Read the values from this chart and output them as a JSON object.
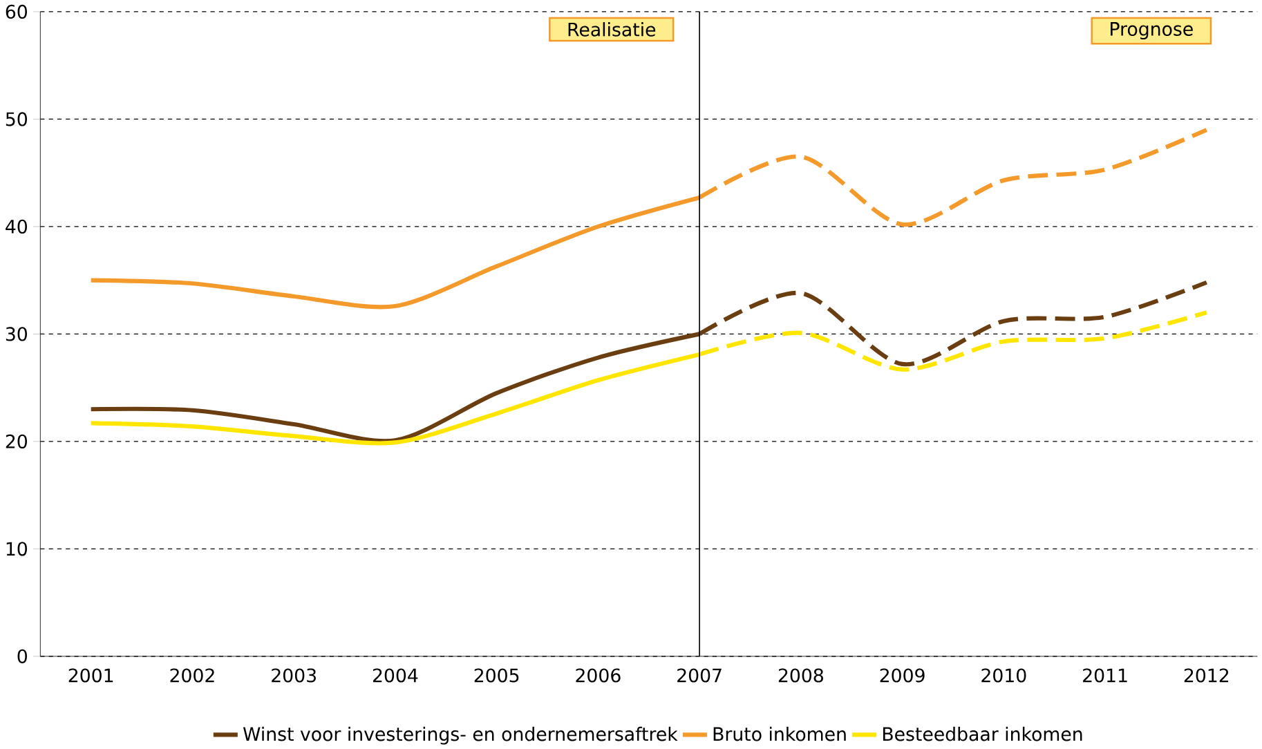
{
  "chart_data": {
    "type": "line",
    "categories": [
      "2001",
      "2002",
      "2003",
      "2004",
      "2005",
      "2006",
      "2007",
      "2008",
      "2009",
      "2010",
      "2011",
      "2012"
    ],
    "series": [
      {
        "name": "Winst voor investerings- en ondernemersaftrek",
        "color": "#6b3e12",
        "line_style": "solid",
        "values": [
          23,
          22.9,
          21.6,
          20.1,
          24.5,
          27.8,
          30,
          null,
          null,
          null,
          null,
          null
        ]
      },
      {
        "name": "Bruto inkomen",
        "color": "#f39a2b",
        "line_style": "solid",
        "values": [
          35,
          34.7,
          33.5,
          32.6,
          36.3,
          40,
          42.7,
          null,
          null,
          null,
          null,
          null
        ]
      },
      {
        "name": "Besteedbaar inkomen",
        "color": "#ffe600",
        "line_style": "solid",
        "values": [
          21.7,
          21.4,
          20.5,
          19.9,
          22.6,
          25.7,
          28.1,
          null,
          null,
          null,
          null,
          null
        ]
      },
      {
        "color": "#6b3e12",
        "line_style": "dashed",
        "values": [
          null,
          null,
          null,
          null,
          null,
          null,
          30,
          33.8,
          27.2,
          31.2,
          31.6,
          34.8
        ]
      },
      {
        "color": "#f39a2b",
        "line_style": "dashed",
        "values": [
          null,
          null,
          null,
          null,
          null,
          null,
          42.7,
          46.5,
          40.2,
          44.3,
          45.3,
          49
        ]
      },
      {
        "color": "#ffe600",
        "line_style": "dashed",
        "values": [
          null,
          null,
          null,
          null,
          null,
          null,
          28.1,
          30.1,
          26.7,
          29.3,
          29.6,
          32
        ]
      }
    ],
    "ylim": [
      0,
      60
    ],
    "yticks": [
      0,
      10,
      20,
      30,
      40,
      50,
      60
    ],
    "grid": "y",
    "legend": "bottom",
    "marker": "none",
    "ref_lines": [
      {
        "axis": "x",
        "value": "2007",
        "color": "#000000"
      }
    ],
    "annotations": [
      "Realisatie",
      "Prognose"
    ]
  }
}
